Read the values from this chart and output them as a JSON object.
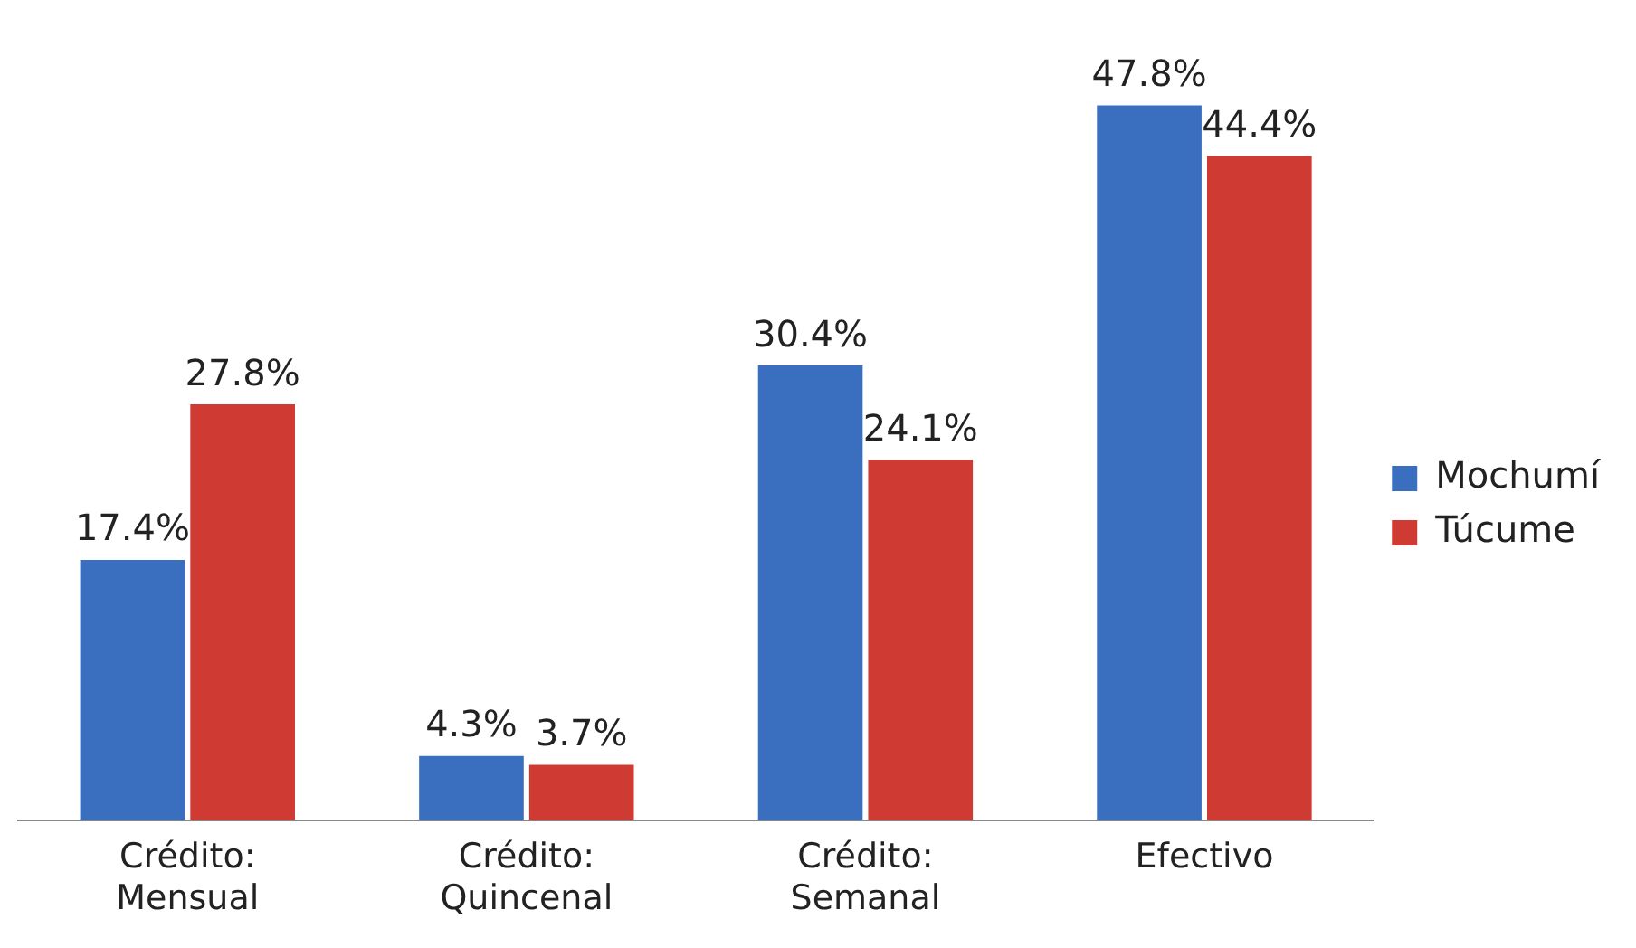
{
  "chart_data": {
    "type": "bar",
    "categories": [
      "Crédito: Mensual",
      "Crédito: Quincenal",
      "Crédito: Semanal",
      "Efectivo"
    ],
    "series": [
      {
        "name": "Mochumí",
        "color": "#3a6fc0",
        "values": [
          17.4,
          4.3,
          30.4,
          47.8
        ],
        "value_labels": [
          "17.4%",
          "4.3%",
          "30.4%",
          "47.8%"
        ]
      },
      {
        "name": "Túcume",
        "color": "#cf3a33",
        "values": [
          27.8,
          3.7,
          24.1,
          44.4
        ],
        "value_labels": [
          "27.8%",
          "3.7%",
          "24.1%",
          "44.4%"
        ]
      }
    ],
    "legend": "right",
    "grid": false
  }
}
